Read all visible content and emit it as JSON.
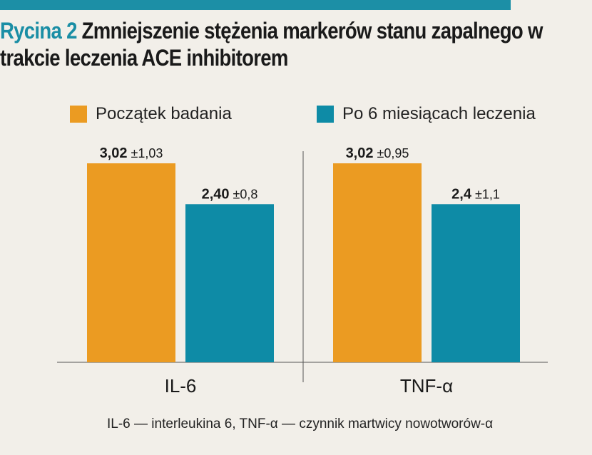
{
  "header": {
    "figure_label": "Rycina 2",
    "title": "Zmniejszenie stężenia markerów stanu zapalnego w trakcie leczenia ACE inhibitorem"
  },
  "colors": {
    "accent": "#1c8fa6",
    "series_1": "#eb9b22",
    "series_2": "#0e8ba6",
    "background": "#f2efe9"
  },
  "chart_data": {
    "type": "bar",
    "categories": [
      "IL-6",
      "TNF-α"
    ],
    "series": [
      {
        "name": "Początek badania",
        "values": [
          3.02,
          3.02
        ],
        "value_labels": [
          "3,02",
          "3,02"
        ],
        "error_labels": [
          "±1,03",
          "±0,95"
        ]
      },
      {
        "name": "Po 6 miesiącach leczenia",
        "values": [
          2.4,
          2.4
        ],
        "value_labels": [
          "2,40",
          "2,4"
        ],
        "error_labels": [
          "±0,8",
          "±1,1"
        ]
      }
    ],
    "legend_position": "top",
    "grid": false,
    "ylim": [
      0,
      3.02
    ]
  },
  "footnote": "IL-6 — interleukina 6, TNF-α — czynnik martwicy nowotworów-α"
}
